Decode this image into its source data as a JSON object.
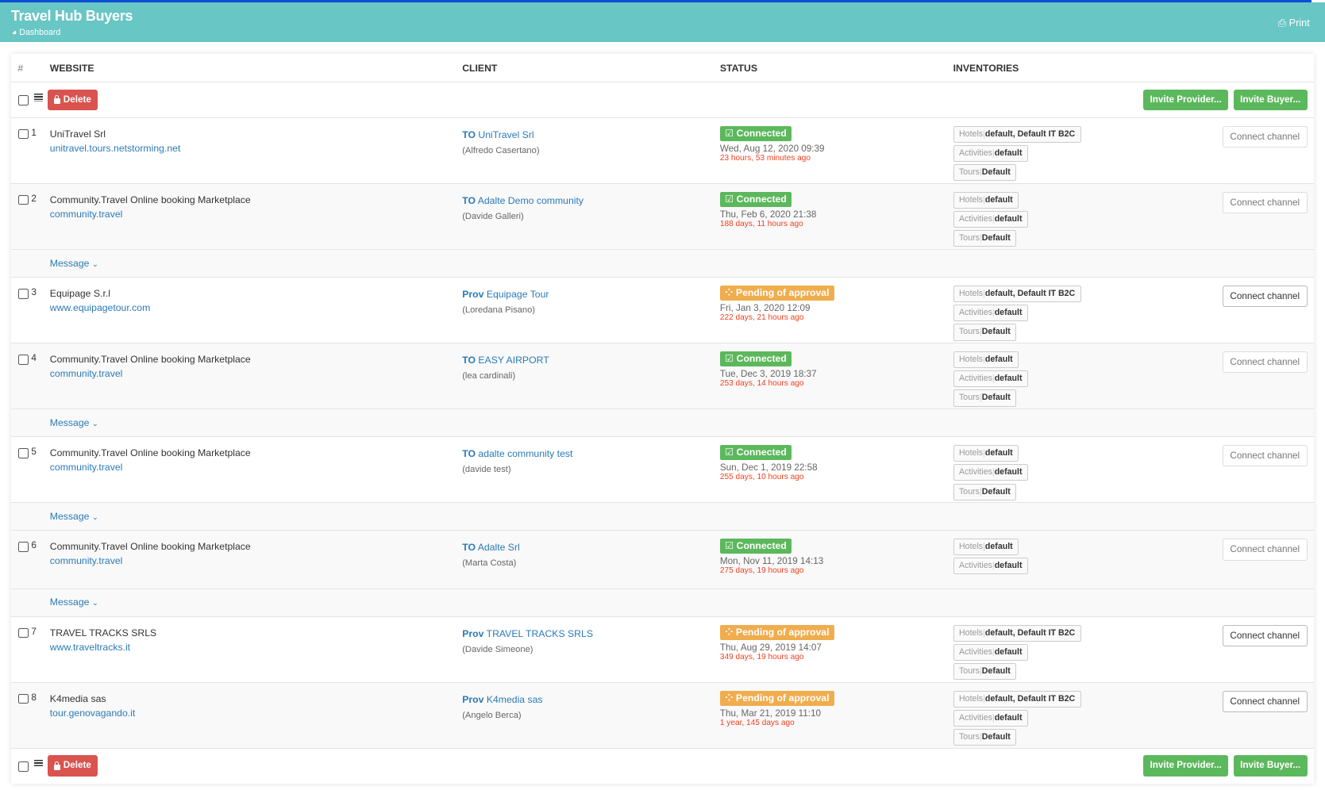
{
  "header": {
    "title": "Travel Hub Buyers",
    "breadcrumb": "Dashboard",
    "print": "Print"
  },
  "colors": {
    "header": "#68c6c5",
    "connected": "#5cb85c",
    "pending": "#f0ad4e",
    "delete": "#d9534f",
    "link": "#2a7ab8"
  },
  "table": {
    "headers": {
      "num": "#",
      "website": "WEBSITE",
      "client": "CLIENT",
      "status": "STATUS",
      "inventories": "INVENTORIES"
    }
  },
  "toolbar": {
    "delete": "Delete",
    "invite_provider": "Invite Provider...",
    "invite_buyer": "Invite Buyer...",
    "connect": "Connect channel",
    "message": "Message"
  },
  "rows": [
    {
      "num": "1",
      "name": "UniTravel Srl",
      "url": "unitravel.tours.netstorming.net",
      "type": "TO",
      "client": "UniTravel Srl",
      "contact": "(Alfredo Casertano)",
      "status": "Connected",
      "date": "Wed, Aug 12, 2020 09:39",
      "ago": "23 hours, 53 minutes ago",
      "inv": [
        [
          "Hotels",
          "default, Default IT B2C"
        ],
        [
          "Activities",
          "default"
        ],
        [
          "Tours",
          "Default"
        ]
      ],
      "message": false
    },
    {
      "num": "2",
      "name": "Community.Travel Online booking Marketplace",
      "url": "community.travel",
      "type": "TO",
      "client": "Adalte Demo community",
      "contact": "(Davide Galleri)",
      "status": "Connected",
      "date": "Thu, Feb 6, 2020 21:38",
      "ago": "188 days, 11 hours ago",
      "inv": [
        [
          "Hotels",
          "default"
        ],
        [
          "Activities",
          "default"
        ],
        [
          "Tours",
          "Default"
        ]
      ],
      "message": true
    },
    {
      "num": "3",
      "name": "Equipage S.r.l",
      "url": "www.equipagetour.com",
      "type": "Prov",
      "client": "Equipage Tour",
      "contact": "(Loredana Pisano)",
      "status": "Pending of approval",
      "date": "Fri, Jan 3, 2020 12:09",
      "ago": "222 days, 21 hours ago",
      "inv": [
        [
          "Hotels",
          "default, Default IT B2C"
        ],
        [
          "Activities",
          "default"
        ],
        [
          "Tours",
          "Default"
        ]
      ],
      "message": false
    },
    {
      "num": "4",
      "name": "Community.Travel Online booking Marketplace",
      "url": "community.travel",
      "type": "TO",
      "client": "EASY AIRPORT",
      "contact": "(lea cardinali)",
      "status": "Connected",
      "date": "Tue, Dec 3, 2019 18:37",
      "ago": "253 days, 14 hours ago",
      "inv": [
        [
          "Hotels",
          "default"
        ],
        [
          "Activities",
          "default"
        ],
        [
          "Tours",
          "Default"
        ]
      ],
      "message": true
    },
    {
      "num": "5",
      "name": "Community.Travel Online booking Marketplace",
      "url": "community.travel",
      "type": "TO",
      "client": "adalte community test",
      "contact": "(davide test)",
      "status": "Connected",
      "date": "Sun, Dec 1, 2019 22:58",
      "ago": "255 days, 10 hours ago",
      "inv": [
        [
          "Hotels",
          "default"
        ],
        [
          "Activities",
          "default"
        ],
        [
          "Tours",
          "Default"
        ]
      ],
      "message": true
    },
    {
      "num": "6",
      "name": "Community.Travel Online booking Marketplace",
      "url": "community.travel",
      "type": "TO",
      "client": "Adalte Srl",
      "contact": "(Marta Costa)",
      "status": "Connected",
      "date": "Mon, Nov 11, 2019 14:13",
      "ago": "275 days, 19 hours ago",
      "inv": [
        [
          "Hotels",
          "default"
        ],
        [
          "Activities",
          "default"
        ]
      ],
      "message": true
    },
    {
      "num": "7",
      "name": "TRAVEL TRACKS SRLS",
      "url": "www.traveltracks.it",
      "type": "Prov",
      "client": "TRAVEL TRACKS SRLS",
      "contact": "(Davide Simeone)",
      "status": "Pending of approval",
      "date": "Thu, Aug 29, 2019 14:07",
      "ago": "349 days, 19 hours ago",
      "inv": [
        [
          "Hotels",
          "default, Default IT B2C"
        ],
        [
          "Activities",
          "default"
        ],
        [
          "Tours",
          "Default"
        ]
      ],
      "message": false
    },
    {
      "num": "8",
      "name": "K4media sas",
      "url": "tour.genovagando.it",
      "type": "Prov",
      "client": "K4media sas",
      "contact": "(Angelo Berca)",
      "status": "Pending of approval",
      "date": "Thu, Mar 21, 2019 11:10",
      "ago": "1 year, 145 days ago",
      "inv": [
        [
          "Hotels",
          "default, Default IT B2C"
        ],
        [
          "Activities",
          "default"
        ],
        [
          "Tours",
          "Default"
        ]
      ],
      "message": false
    }
  ]
}
